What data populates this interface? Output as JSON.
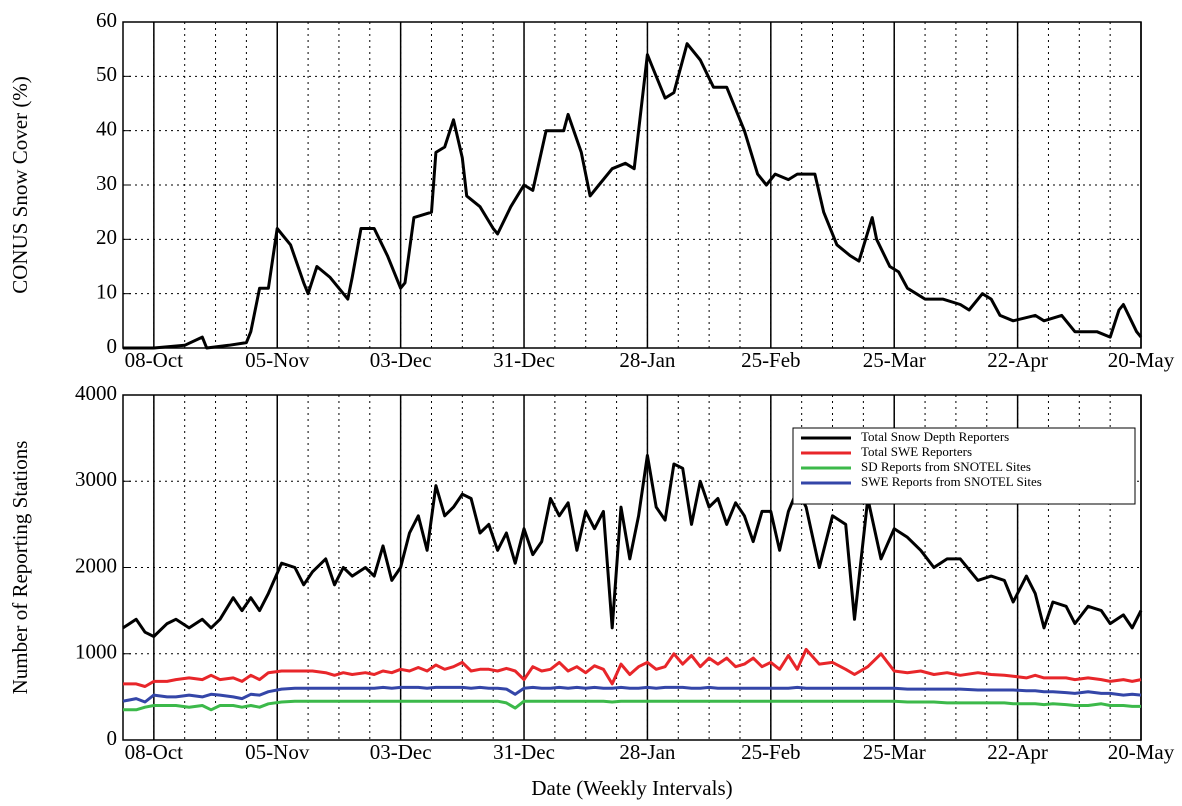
{
  "chart_data": [
    {
      "type": "line",
      "ylabel": "CONUS Snow Cover (%)",
      "xlim": [
        0,
        231
      ],
      "xticks": [
        {
          "value": 7,
          "label": "08-Oct"
        },
        {
          "value": 35,
          "label": "05-Nov"
        },
        {
          "value": 63,
          "label": "03-Dec"
        },
        {
          "value": 91,
          "label": "31-Dec"
        },
        {
          "value": 119,
          "label": "28-Jan"
        },
        {
          "value": 147,
          "label": "25-Feb"
        },
        {
          "value": 175,
          "label": "25-Mar"
        },
        {
          "value": 203,
          "label": "22-Apr"
        },
        {
          "value": 231,
          "label": "20-May"
        }
      ],
      "ylim": [
        0,
        60
      ],
      "yticks": [
        0,
        10,
        20,
        30,
        40,
        50,
        60
      ],
      "grid": true,
      "x": [
        0,
        7,
        14,
        18,
        19,
        24,
        28,
        29,
        31,
        33,
        35,
        38,
        41,
        42,
        44,
        47,
        51,
        52,
        54,
        57,
        60,
        63,
        64,
        66,
        70,
        71,
        73,
        75,
        77,
        78,
        81,
        84,
        85,
        88,
        91,
        93,
        96,
        100,
        101,
        104,
        106,
        108,
        111,
        114,
        116,
        117,
        119,
        120,
        123,
        125,
        128,
        131,
        134,
        137,
        141,
        144,
        146,
        148,
        151,
        153,
        157,
        159,
        162,
        165,
        167,
        170,
        171,
        174,
        176,
        178,
        182,
        186,
        190,
        192,
        195,
        197,
        199,
        202,
        207,
        209,
        213,
        216,
        221,
        224,
        226,
        227,
        230,
        231
      ],
      "series": [
        {
          "color": "#000000",
          "values": [
            0,
            0,
            0.5,
            2,
            0,
            0.5,
            1,
            3,
            11,
            11,
            22,
            19,
            12,
            10,
            15,
            13,
            9,
            13,
            22,
            22,
            17,
            11,
            12,
            24,
            25,
            36,
            37,
            42,
            35,
            28,
            26,
            22,
            21,
            26,
            30,
            29,
            40,
            40,
            43,
            36,
            28,
            30,
            33,
            34,
            33,
            40,
            54,
            52,
            46,
            47,
            56,
            53,
            48,
            48,
            40,
            32,
            30,
            32,
            31,
            32,
            32,
            25,
            19,
            17,
            16,
            24,
            20,
            15,
            14,
            11,
            9,
            9,
            8,
            7,
            10,
            9,
            6,
            5,
            6,
            5,
            6,
            3,
            3,
            2,
            7,
            8,
            3,
            2
          ]
        }
      ]
    },
    {
      "type": "line",
      "xlabel": "Date (Weekly Intervals)",
      "ylabel": "Number of Reporting Stations",
      "xlim": [
        0,
        231
      ],
      "xticks": [
        {
          "value": 7,
          "label": "08-Oct"
        },
        {
          "value": 35,
          "label": "05-Nov"
        },
        {
          "value": 63,
          "label": "03-Dec"
        },
        {
          "value": 91,
          "label": "31-Dec"
        },
        {
          "value": 119,
          "label": "28-Jan"
        },
        {
          "value": 147,
          "label": "25-Feb"
        },
        {
          "value": 175,
          "label": "25-Mar"
        },
        {
          "value": 203,
          "label": "22-Apr"
        },
        {
          "value": 231,
          "label": "20-May"
        }
      ],
      "ylim": [
        0,
        4000
      ],
      "yticks": [
        0,
        1000,
        2000,
        3000,
        4000
      ],
      "grid": true,
      "legend": "upper right",
      "x": [
        0,
        3,
        5,
        7,
        10,
        12,
        15,
        18,
        20,
        22,
        25,
        27,
        29,
        31,
        33,
        36,
        39,
        41,
        43,
        46,
        48,
        50,
        52,
        55,
        57,
        59,
        61,
        63,
        65,
        67,
        69,
        71,
        73,
        75,
        77,
        79,
        81,
        83,
        85,
        87,
        89,
        91,
        93,
        95,
        97,
        99,
        101,
        103,
        105,
        107,
        109,
        111,
        113,
        115,
        117,
        119,
        121,
        123,
        125,
        127,
        129,
        131,
        133,
        135,
        137,
        139,
        141,
        143,
        145,
        147,
        149,
        151,
        153,
        155,
        158,
        161,
        164,
        166,
        169,
        172,
        175,
        178,
        181,
        184,
        187,
        190,
        194,
        197,
        200,
        202,
        205,
        207,
        209,
        211,
        214,
        216,
        219,
        222,
        224,
        227,
        229,
        231
      ],
      "series": [
        {
          "name": "Total Snow Depth Reporters",
          "color": "#000000",
          "values": [
            1300,
            1400,
            1250,
            1200,
            1350,
            1400,
            1300,
            1400,
            1300,
            1400,
            1650,
            1500,
            1650,
            1500,
            1700,
            2050,
            2000,
            1800,
            1950,
            2100,
            1800,
            2000,
            1900,
            2000,
            1900,
            2250,
            1850,
            2000,
            2400,
            2600,
            2200,
            2950,
            2600,
            2700,
            2850,
            2800,
            2400,
            2500,
            2200,
            2400,
            2050,
            2450,
            2150,
            2300,
            2800,
            2600,
            2750,
            2200,
            2650,
            2450,
            2650,
            1300,
            2700,
            2100,
            2600,
            3300,
            2700,
            2550,
            3200,
            3150,
            2500,
            3000,
            2700,
            2800,
            2500,
            2750,
            2600,
            2300,
            2650,
            2650,
            2200,
            2650,
            2900,
            2700,
            2000,
            2600,
            2500,
            1400,
            2800,
            2100,
            2450,
            2350,
            2200,
            2000,
            2100,
            2100,
            1850,
            1900,
            1850,
            1600,
            1900,
            1700,
            1300,
            1600,
            1550,
            1350,
            1550,
            1500,
            1350,
            1450,
            1300,
            1500
          ]
        },
        {
          "name": "Total SWE Reporters",
          "color": "#e8262a",
          "values": [
            650,
            650,
            620,
            680,
            680,
            700,
            720,
            700,
            750,
            700,
            720,
            680,
            750,
            700,
            780,
            800,
            800,
            800,
            800,
            780,
            750,
            780,
            760,
            780,
            760,
            800,
            780,
            820,
            800,
            840,
            800,
            870,
            820,
            850,
            900,
            800,
            820,
            820,
            800,
            830,
            800,
            700,
            850,
            800,
            820,
            900,
            800,
            850,
            780,
            860,
            820,
            650,
            880,
            760,
            850,
            900,
            820,
            850,
            1000,
            880,
            980,
            850,
            950,
            880,
            950,
            850,
            880,
            950,
            850,
            900,
            820,
            980,
            820,
            1050,
            880,
            900,
            820,
            760,
            850,
            1000,
            800,
            780,
            800,
            760,
            780,
            750,
            780,
            760,
            750,
            740,
            720,
            750,
            720,
            720,
            720,
            700,
            720,
            700,
            680,
            700,
            680,
            700
          ]
        },
        {
          "name": "SD Reports from SNOTEL Sites",
          "color": "#3cb94a",
          "values": [
            350,
            350,
            380,
            400,
            400,
            400,
            380,
            400,
            350,
            400,
            400,
            380,
            400,
            380,
            420,
            440,
            450,
            450,
            450,
            450,
            450,
            450,
            450,
            450,
            450,
            450,
            450,
            450,
            450,
            450,
            450,
            450,
            450,
            450,
            450,
            450,
            450,
            450,
            450,
            430,
            370,
            450,
            450,
            450,
            450,
            450,
            450,
            450,
            450,
            450,
            450,
            440,
            450,
            450,
            450,
            450,
            450,
            450,
            450,
            450,
            450,
            450,
            450,
            450,
            450,
            450,
            450,
            450,
            450,
            450,
            450,
            450,
            450,
            450,
            450,
            450,
            450,
            450,
            450,
            450,
            450,
            440,
            440,
            440,
            430,
            430,
            430,
            430,
            430,
            420,
            420,
            420,
            410,
            420,
            410,
            400,
            400,
            420,
            400,
            400,
            390,
            390
          ]
        },
        {
          "name": "SWE Reports from SNOTEL Sites",
          "color": "#3446a8",
          "values": [
            450,
            480,
            440,
            520,
            500,
            500,
            520,
            500,
            530,
            520,
            500,
            480,
            530,
            520,
            560,
            590,
            600,
            600,
            600,
            600,
            600,
            600,
            600,
            600,
            600,
            610,
            600,
            610,
            610,
            610,
            600,
            610,
            610,
            610,
            610,
            600,
            610,
            600,
            600,
            590,
            530,
            600,
            610,
            600,
            600,
            610,
            600,
            610,
            600,
            610,
            600,
            600,
            610,
            600,
            600,
            610,
            600,
            610,
            610,
            610,
            600,
            600,
            610,
            600,
            600,
            600,
            600,
            600,
            600,
            600,
            600,
            600,
            610,
            600,
            600,
            600,
            600,
            600,
            600,
            600,
            600,
            590,
            590,
            590,
            590,
            590,
            580,
            580,
            580,
            580,
            570,
            570,
            560,
            560,
            550,
            540,
            560,
            540,
            540,
            520,
            530,
            520
          ]
        }
      ]
    }
  ]
}
